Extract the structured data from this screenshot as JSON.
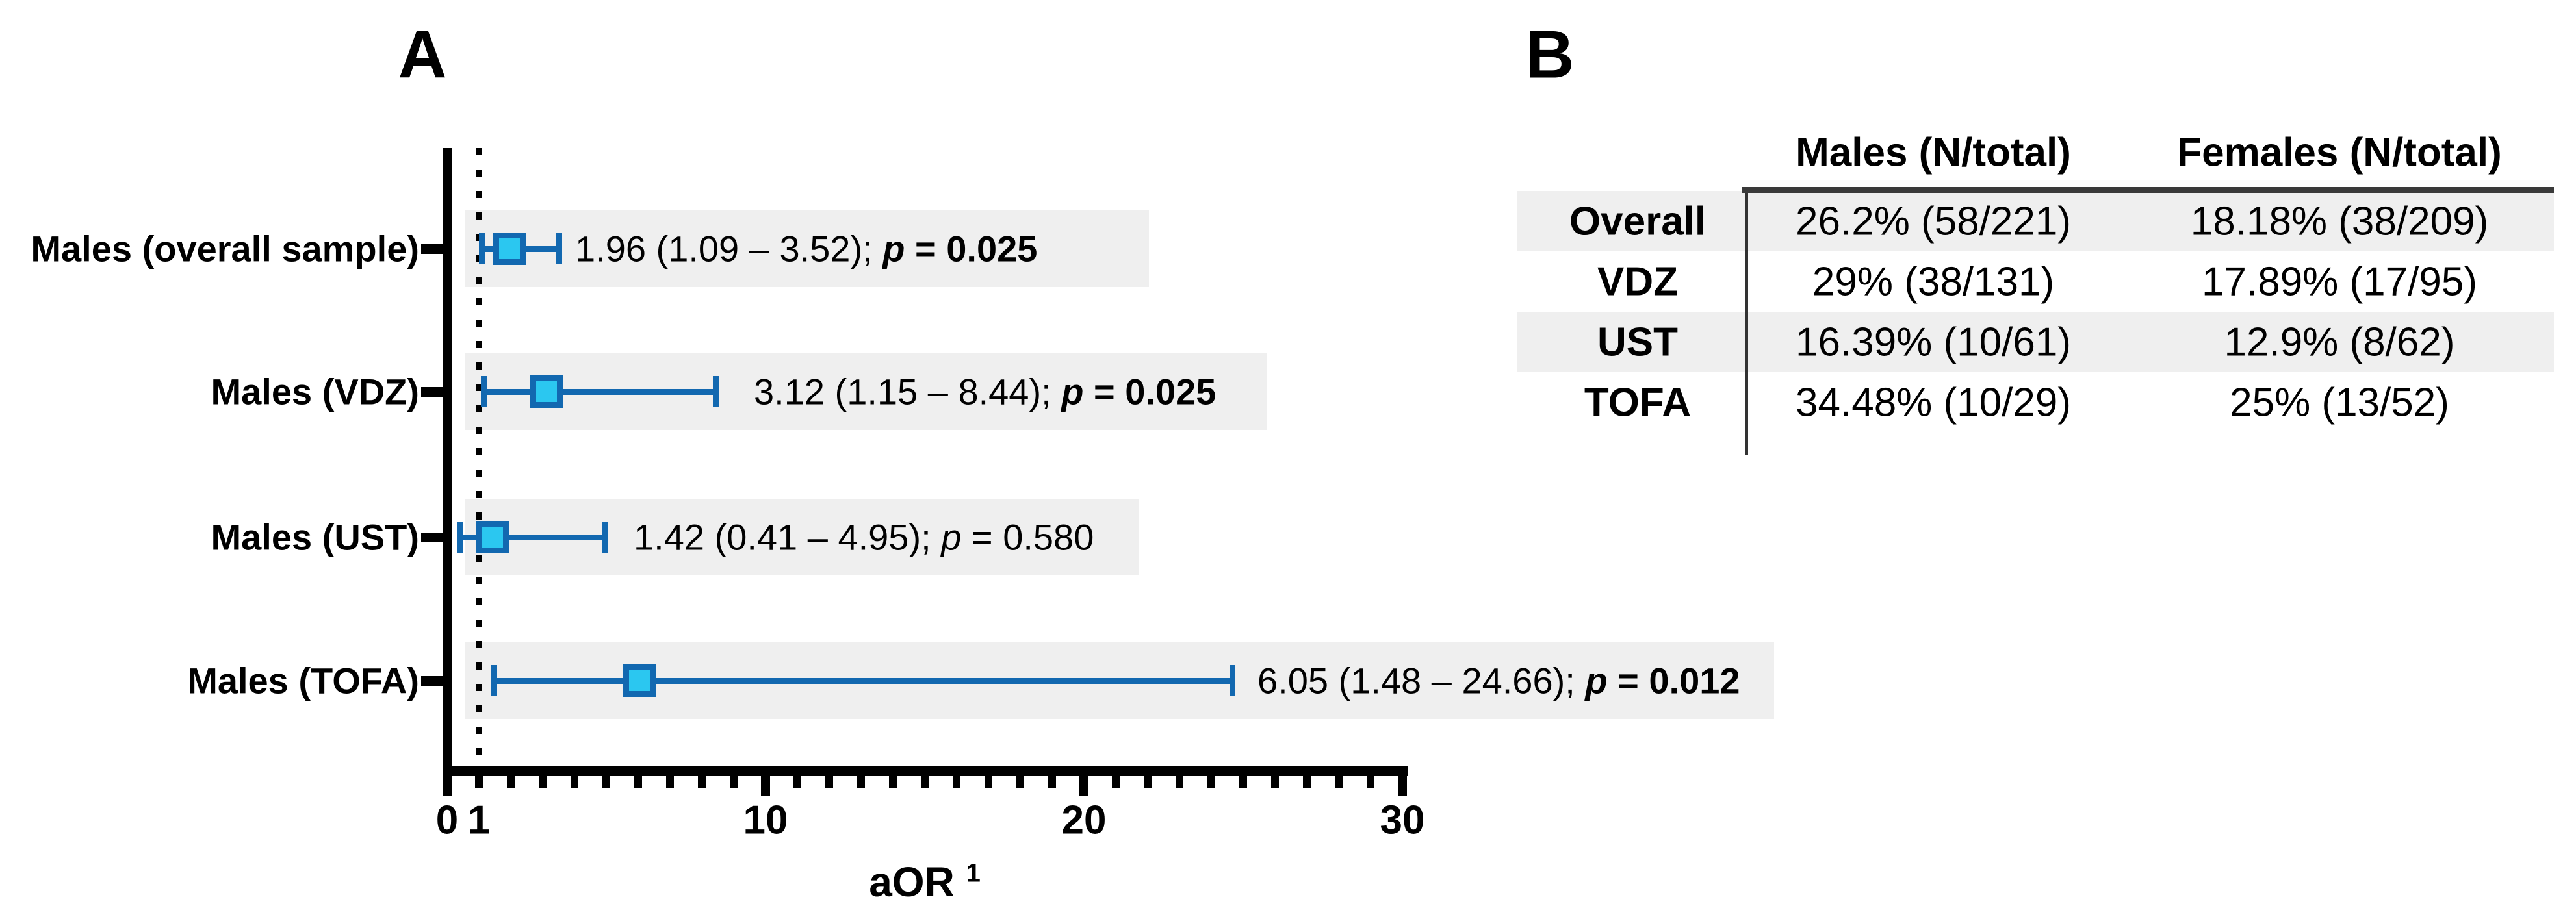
{
  "panels": {
    "a": "A",
    "b": "B"
  },
  "colors": {
    "errorbar_blue": "#1268b0",
    "marker_cyan": "#2bc7f0",
    "band_gray": "#efefef",
    "header_rule": "#3a3a3a"
  },
  "chart_data": [
    {
      "panel": "A",
      "type": "forest_plot_scatter",
      "xlabel": "aOR",
      "xlabel_sup": "1",
      "xlim": [
        0,
        30
      ],
      "grid": false,
      "reference_line_x": 1,
      "x_tick_labels": [
        {
          "value": 0,
          "label": "0"
        },
        {
          "value": 1,
          "label": "1"
        },
        {
          "value": 10,
          "label": "10"
        },
        {
          "value": 20,
          "label": "20"
        },
        {
          "value": 30,
          "label": "30"
        }
      ],
      "rows": [
        {
          "label": "Males (overall sample)",
          "estimate": 1.96,
          "ci_low": 1.09,
          "ci_high": 3.52,
          "p_value": "0.025",
          "p_bold": true,
          "ci_text": "1.96 (1.09 – 3.52); ",
          "p_sym": "p",
          "p_rest": " = 0.025"
        },
        {
          "label": "Males (VDZ)",
          "estimate": 3.12,
          "ci_low": 1.15,
          "ci_high": 8.44,
          "p_value": "0.025",
          "p_bold": true,
          "ci_text": "3.12 (1.15 – 8.44); ",
          "p_sym": "p",
          "p_rest": " = 0.025"
        },
        {
          "label": "Males (UST)",
          "estimate": 1.42,
          "ci_low": 0.41,
          "ci_high": 4.95,
          "p_value": "0.580",
          "p_bold": false,
          "ci_text": "1.42 (0.41 – 4.95); ",
          "p_sym": "p",
          "p_rest": " = 0.580"
        },
        {
          "label": "Males (TOFA)",
          "estimate": 6.05,
          "ci_low": 1.48,
          "ci_high": 24.66,
          "p_value": "0.012",
          "p_bold": true,
          "ci_text": "6.05 (1.48 – 24.66); ",
          "p_sym": "p",
          "p_rest": " = 0.012"
        }
      ]
    },
    {
      "panel": "B",
      "type": "table",
      "col_headers": [
        "Males (N/total)",
        "Females (N/total)"
      ],
      "rows": [
        {
          "label": "Overall",
          "males": "26.2% (58/221)",
          "females": "18.18% (38/209)",
          "shaded": true
        },
        {
          "label": "VDZ",
          "males": "29% (38/131)",
          "females": "17.89% (17/95)",
          "shaded": false
        },
        {
          "label": "UST",
          "males": "16.39% (10/61)",
          "females": "12.9% (8/62)",
          "shaded": true
        },
        {
          "label": "TOFA",
          "males": "34.48% (10/29)",
          "females": "25% (13/52)",
          "shaded": false
        }
      ]
    }
  ]
}
